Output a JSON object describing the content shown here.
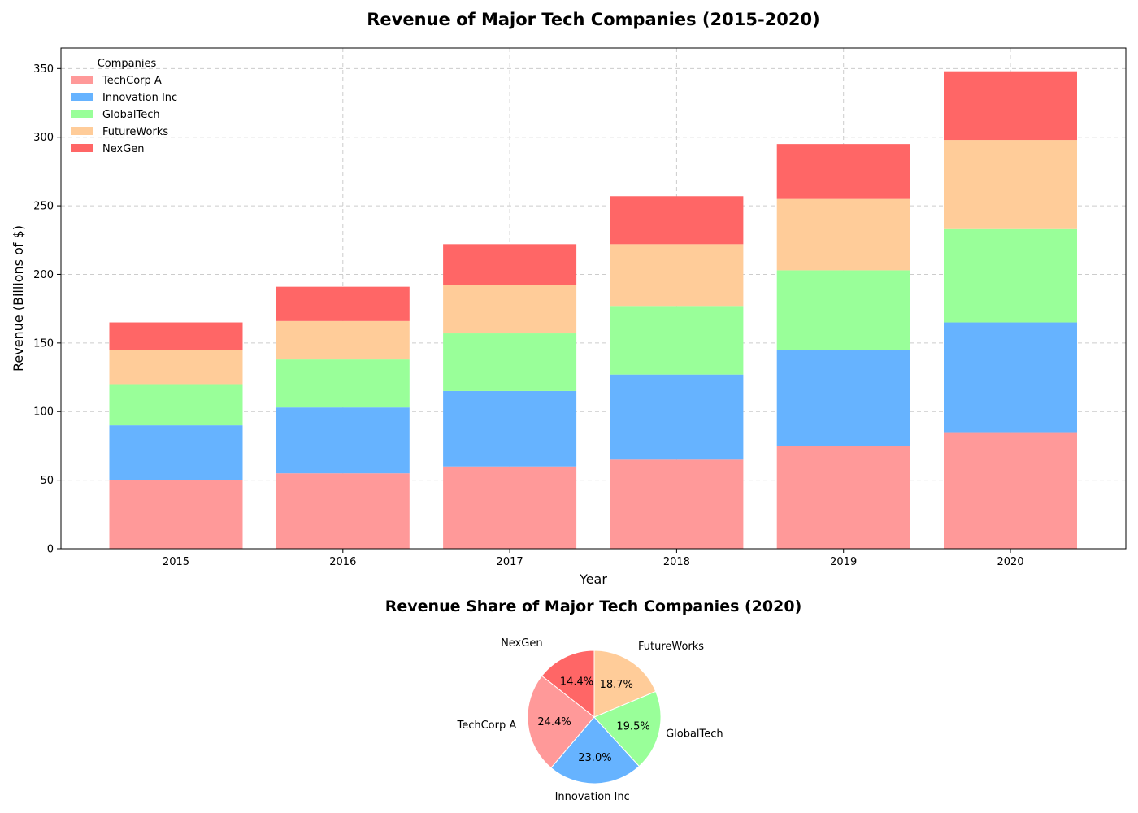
{
  "chart_data": [
    {
      "type": "bar",
      "stacked": true,
      "title": "Revenue of Major Tech Companies (2015-2020)",
      "xlabel": "Year",
      "ylabel": "Revenue (Billions of $)",
      "categories": [
        "2015",
        "2016",
        "2017",
        "2018",
        "2019",
        "2020"
      ],
      "series": [
        {
          "name": "TechCorp A",
          "color": "#ff9999",
          "values": [
            50,
            55,
            60,
            65,
            75,
            85
          ]
        },
        {
          "name": "Innovation Inc",
          "color": "#66b3ff",
          "values": [
            40,
            48,
            55,
            62,
            70,
            80
          ]
        },
        {
          "name": "GlobalTech",
          "color": "#99ff99",
          "values": [
            30,
            35,
            42,
            50,
            58,
            68
          ]
        },
        {
          "name": "FutureWorks",
          "color": "#ffcc99",
          "values": [
            25,
            28,
            35,
            45,
            52,
            65
          ]
        },
        {
          "name": "NexGen",
          "color": "#ff6666",
          "values": [
            20,
            25,
            30,
            35,
            40,
            50
          ]
        }
      ],
      "ylim": [
        0,
        365
      ],
      "yticks": [
        "0",
        "50",
        "100",
        "150",
        "200",
        "250",
        "300",
        "350"
      ],
      "legend": {
        "title": "Companies",
        "placement": "top-left"
      },
      "grid": true
    },
    {
      "type": "pie",
      "title": "Revenue Share of Major Tech Companies (2020)",
      "labels": [
        "NexGen",
        "TechCorp A",
        "Innovation Inc",
        "GlobalTech",
        "FutureWorks"
      ],
      "values": [
        14.4,
        24.4,
        23.0,
        19.5,
        18.7
      ],
      "pct_labels": [
        "14.4%",
        "24.4%",
        "23.0%",
        "19.5%",
        "18.7%"
      ],
      "colors": [
        "#ff6666",
        "#ff9999",
        "#66b3ff",
        "#99ff99",
        "#ffcc99"
      ]
    }
  ]
}
